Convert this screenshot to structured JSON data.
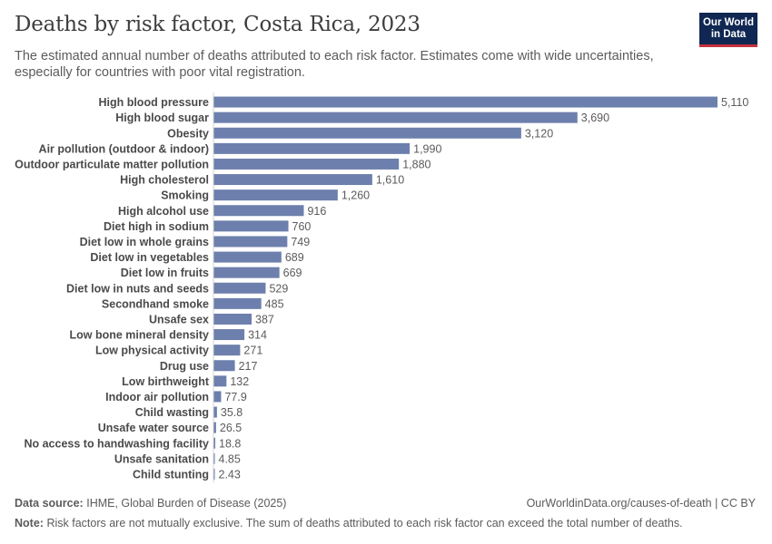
{
  "header": {
    "title": "Deaths by risk factor, Costa Rica, 2023",
    "subtitle": "The estimated annual number of deaths attributed to each risk factor. Estimates come with wide uncertainties, especially for countries with poor vital registration.",
    "logo_line1": "Our World",
    "logo_line2": "in Data"
  },
  "footer": {
    "source_label": "Data source:",
    "source_text": "IHME, Global Burden of Disease (2025)",
    "url_text": "OurWorldinData.org/causes-of-death | CC BY",
    "note_label": "Note:",
    "note_text": "Risk factors are not mutually exclusive. The sum of deaths attributed to each risk factor can exceed the total number of deaths."
  },
  "colors": {
    "bar": "#6d7fac",
    "brand": "#0f2752",
    "accent": "#c4323c"
  },
  "chart_data": {
    "type": "bar",
    "orientation": "horizontal",
    "categories": [
      "High blood pressure",
      "High blood sugar",
      "Obesity",
      "Air pollution (outdoor & indoor)",
      "Outdoor particulate matter pollution",
      "High cholesterol",
      "Smoking",
      "High alcohol use",
      "Diet high in sodium",
      "Diet low in whole grains",
      "Diet low in vegetables",
      "Diet low in fruits",
      "Diet low in nuts and seeds",
      "Secondhand smoke",
      "Unsafe sex",
      "Low bone mineral density",
      "Low physical activity",
      "Drug use",
      "Low birthweight",
      "Indoor air pollution",
      "Child wasting",
      "Unsafe water source",
      "No access to handwashing facility",
      "Unsafe sanitation",
      "Child stunting"
    ],
    "values": [
      5110,
      3690,
      3120,
      1990,
      1880,
      1610,
      1260,
      916,
      760,
      749,
      689,
      669,
      529,
      485,
      387,
      314,
      271,
      217,
      132,
      77.9,
      35.8,
      26.5,
      18.8,
      4.85,
      2.43
    ],
    "value_labels": [
      "5,110",
      "3,690",
      "3,120",
      "1,990",
      "1,880",
      "1,610",
      "1,260",
      "916",
      "760",
      "749",
      "689",
      "669",
      "529",
      "485",
      "387",
      "314",
      "271",
      "217",
      "132",
      "77.9",
      "35.8",
      "26.5",
      "18.8",
      "4.85",
      "2.43"
    ],
    "xlim": [
      0,
      5110
    ],
    "grid": false,
    "legend": "none"
  }
}
